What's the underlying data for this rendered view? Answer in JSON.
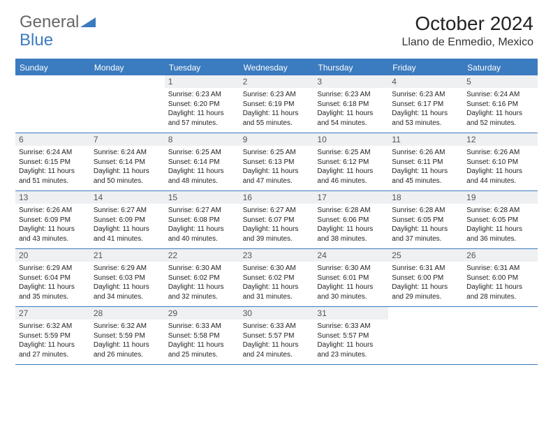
{
  "logo": {
    "part1": "General",
    "part2": "Blue"
  },
  "title": "October 2024",
  "location": "Llano de Enmedio, Mexico",
  "colors": {
    "header_bg": "#3b7bbf",
    "header_text": "#ffffff",
    "daynum_bg": "#eef0f2",
    "cell_text": "#222222",
    "border": "#3b7bbf"
  },
  "day_names": [
    "Sunday",
    "Monday",
    "Tuesday",
    "Wednesday",
    "Thursday",
    "Friday",
    "Saturday"
  ],
  "weeks": [
    [
      {
        "n": "",
        "sr": "",
        "ss": "",
        "dl": ""
      },
      {
        "n": "",
        "sr": "",
        "ss": "",
        "dl": ""
      },
      {
        "n": "1",
        "sr": "Sunrise: 6:23 AM",
        "ss": "Sunset: 6:20 PM",
        "dl": "Daylight: 11 hours and 57 minutes."
      },
      {
        "n": "2",
        "sr": "Sunrise: 6:23 AM",
        "ss": "Sunset: 6:19 PM",
        "dl": "Daylight: 11 hours and 55 minutes."
      },
      {
        "n": "3",
        "sr": "Sunrise: 6:23 AM",
        "ss": "Sunset: 6:18 PM",
        "dl": "Daylight: 11 hours and 54 minutes."
      },
      {
        "n": "4",
        "sr": "Sunrise: 6:23 AM",
        "ss": "Sunset: 6:17 PM",
        "dl": "Daylight: 11 hours and 53 minutes."
      },
      {
        "n": "5",
        "sr": "Sunrise: 6:24 AM",
        "ss": "Sunset: 6:16 PM",
        "dl": "Daylight: 11 hours and 52 minutes."
      }
    ],
    [
      {
        "n": "6",
        "sr": "Sunrise: 6:24 AM",
        "ss": "Sunset: 6:15 PM",
        "dl": "Daylight: 11 hours and 51 minutes."
      },
      {
        "n": "7",
        "sr": "Sunrise: 6:24 AM",
        "ss": "Sunset: 6:14 PM",
        "dl": "Daylight: 11 hours and 50 minutes."
      },
      {
        "n": "8",
        "sr": "Sunrise: 6:25 AM",
        "ss": "Sunset: 6:14 PM",
        "dl": "Daylight: 11 hours and 48 minutes."
      },
      {
        "n": "9",
        "sr": "Sunrise: 6:25 AM",
        "ss": "Sunset: 6:13 PM",
        "dl": "Daylight: 11 hours and 47 minutes."
      },
      {
        "n": "10",
        "sr": "Sunrise: 6:25 AM",
        "ss": "Sunset: 6:12 PM",
        "dl": "Daylight: 11 hours and 46 minutes."
      },
      {
        "n": "11",
        "sr": "Sunrise: 6:26 AM",
        "ss": "Sunset: 6:11 PM",
        "dl": "Daylight: 11 hours and 45 minutes."
      },
      {
        "n": "12",
        "sr": "Sunrise: 6:26 AM",
        "ss": "Sunset: 6:10 PM",
        "dl": "Daylight: 11 hours and 44 minutes."
      }
    ],
    [
      {
        "n": "13",
        "sr": "Sunrise: 6:26 AM",
        "ss": "Sunset: 6:09 PM",
        "dl": "Daylight: 11 hours and 43 minutes."
      },
      {
        "n": "14",
        "sr": "Sunrise: 6:27 AM",
        "ss": "Sunset: 6:09 PM",
        "dl": "Daylight: 11 hours and 41 minutes."
      },
      {
        "n": "15",
        "sr": "Sunrise: 6:27 AM",
        "ss": "Sunset: 6:08 PM",
        "dl": "Daylight: 11 hours and 40 minutes."
      },
      {
        "n": "16",
        "sr": "Sunrise: 6:27 AM",
        "ss": "Sunset: 6:07 PM",
        "dl": "Daylight: 11 hours and 39 minutes."
      },
      {
        "n": "17",
        "sr": "Sunrise: 6:28 AM",
        "ss": "Sunset: 6:06 PM",
        "dl": "Daylight: 11 hours and 38 minutes."
      },
      {
        "n": "18",
        "sr": "Sunrise: 6:28 AM",
        "ss": "Sunset: 6:05 PM",
        "dl": "Daylight: 11 hours and 37 minutes."
      },
      {
        "n": "19",
        "sr": "Sunrise: 6:28 AM",
        "ss": "Sunset: 6:05 PM",
        "dl": "Daylight: 11 hours and 36 minutes."
      }
    ],
    [
      {
        "n": "20",
        "sr": "Sunrise: 6:29 AM",
        "ss": "Sunset: 6:04 PM",
        "dl": "Daylight: 11 hours and 35 minutes."
      },
      {
        "n": "21",
        "sr": "Sunrise: 6:29 AM",
        "ss": "Sunset: 6:03 PM",
        "dl": "Daylight: 11 hours and 34 minutes."
      },
      {
        "n": "22",
        "sr": "Sunrise: 6:30 AM",
        "ss": "Sunset: 6:02 PM",
        "dl": "Daylight: 11 hours and 32 minutes."
      },
      {
        "n": "23",
        "sr": "Sunrise: 6:30 AM",
        "ss": "Sunset: 6:02 PM",
        "dl": "Daylight: 11 hours and 31 minutes."
      },
      {
        "n": "24",
        "sr": "Sunrise: 6:30 AM",
        "ss": "Sunset: 6:01 PM",
        "dl": "Daylight: 11 hours and 30 minutes."
      },
      {
        "n": "25",
        "sr": "Sunrise: 6:31 AM",
        "ss": "Sunset: 6:00 PM",
        "dl": "Daylight: 11 hours and 29 minutes."
      },
      {
        "n": "26",
        "sr": "Sunrise: 6:31 AM",
        "ss": "Sunset: 6:00 PM",
        "dl": "Daylight: 11 hours and 28 minutes."
      }
    ],
    [
      {
        "n": "27",
        "sr": "Sunrise: 6:32 AM",
        "ss": "Sunset: 5:59 PM",
        "dl": "Daylight: 11 hours and 27 minutes."
      },
      {
        "n": "28",
        "sr": "Sunrise: 6:32 AM",
        "ss": "Sunset: 5:59 PM",
        "dl": "Daylight: 11 hours and 26 minutes."
      },
      {
        "n": "29",
        "sr": "Sunrise: 6:33 AM",
        "ss": "Sunset: 5:58 PM",
        "dl": "Daylight: 11 hours and 25 minutes."
      },
      {
        "n": "30",
        "sr": "Sunrise: 6:33 AM",
        "ss": "Sunset: 5:57 PM",
        "dl": "Daylight: 11 hours and 24 minutes."
      },
      {
        "n": "31",
        "sr": "Sunrise: 6:33 AM",
        "ss": "Sunset: 5:57 PM",
        "dl": "Daylight: 11 hours and 23 minutes."
      },
      {
        "n": "",
        "sr": "",
        "ss": "",
        "dl": ""
      },
      {
        "n": "",
        "sr": "",
        "ss": "",
        "dl": ""
      }
    ]
  ]
}
